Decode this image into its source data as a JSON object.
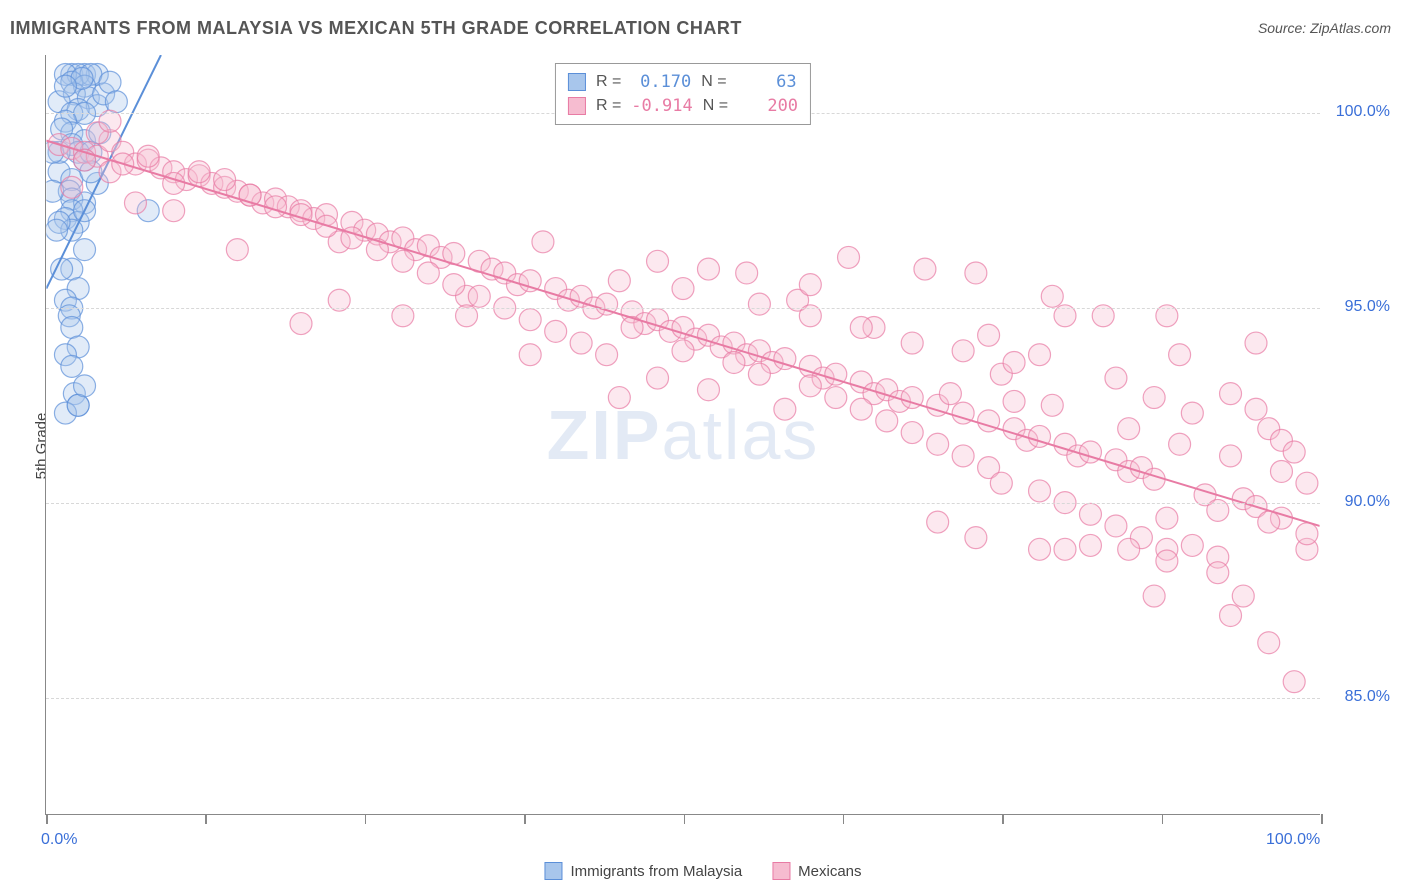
{
  "title": "IMMIGRANTS FROM MALAYSIA VS MEXICAN 5TH GRADE CORRELATION CHART",
  "source": "Source: ZipAtlas.com",
  "watermark_a": "ZIP",
  "watermark_b": "atlas",
  "ylabel": "5th Grade",
  "chart": {
    "type": "scatter",
    "xlim": [
      0,
      100
    ],
    "ylim": [
      82,
      101.5
    ],
    "xtick_positions": [
      0,
      12.5,
      25,
      37.5,
      50,
      62.5,
      75,
      87.5,
      100
    ],
    "xtick_labels": {
      "0": "0.0%",
      "100": "100.0%"
    },
    "ytick_positions": [
      85,
      90,
      95,
      100
    ],
    "ytick_labels": [
      "85.0%",
      "90.0%",
      "95.0%",
      "100.0%"
    ],
    "grid_color": "#d8d8d8",
    "background_color": "#ffffff",
    "marker_radius": 11,
    "marker_fill_opacity": 0.35,
    "marker_stroke_opacity": 0.7,
    "marker_stroke_width": 1.2,
    "line_width": 2,
    "series": [
      {
        "name": "Immigrants from Malaysia",
        "color": "#5b8fd8",
        "fill": "#a8c6ec",
        "R": "0.170",
        "N": "63",
        "trend": {
          "x1": 0,
          "y1": 95.5,
          "x2": 9,
          "y2": 101.5
        },
        "points": [
          [
            2,
            101
          ],
          [
            3,
            101
          ],
          [
            4,
            101
          ],
          [
            2.5,
            101
          ],
          [
            3.5,
            101
          ],
          [
            1.5,
            101
          ],
          [
            2,
            100.8
          ],
          [
            3,
            100.7
          ],
          [
            2.2,
            100.5
          ],
          [
            3.3,
            100.4
          ],
          [
            1,
            100.3
          ],
          [
            4,
            100.2
          ],
          [
            2.5,
            100.1
          ],
          [
            2,
            100
          ],
          [
            3,
            100
          ],
          [
            1.5,
            99.8
          ],
          [
            4.5,
            100.5
          ],
          [
            2,
            99.5
          ],
          [
            3,
            99.3
          ],
          [
            1.2,
            99.6
          ],
          [
            2,
            99.2
          ],
          [
            2.5,
            99
          ],
          [
            3,
            98.8
          ],
          [
            1,
            98.5
          ],
          [
            2,
            98.3
          ],
          [
            3.5,
            99
          ],
          [
            1.8,
            98
          ],
          [
            2,
            97.8
          ],
          [
            3,
            97.7
          ],
          [
            4,
            98.2
          ],
          [
            2,
            97.5
          ],
          [
            1.5,
            97.3
          ],
          [
            2.5,
            97.2
          ],
          [
            3,
            97.5
          ],
          [
            2,
            97
          ],
          [
            1,
            97.2
          ],
          [
            8,
            97.5
          ],
          [
            2,
            96
          ],
          [
            2.5,
            95.5
          ],
          [
            1.5,
            95.2
          ],
          [
            2,
            95
          ],
          [
            3,
            96.5
          ],
          [
            1.8,
            94.8
          ],
          [
            2,
            94.5
          ],
          [
            2.5,
            94
          ],
          [
            1.5,
            93.8
          ],
          [
            2,
            93.5
          ],
          [
            2.2,
            92.8
          ],
          [
            2.5,
            92.5
          ],
          [
            1.5,
            92.3
          ],
          [
            2.5,
            92.5
          ],
          [
            3,
            93
          ],
          [
            1,
            99
          ],
          [
            5,
            100.8
          ],
          [
            3.5,
            98.5
          ],
          [
            0.8,
            97
          ],
          [
            0.5,
            99
          ],
          [
            1.2,
            96
          ],
          [
            4.2,
            99.5
          ],
          [
            0.5,
            98
          ],
          [
            5.5,
            100.3
          ],
          [
            2.8,
            100.9
          ],
          [
            1.5,
            100.7
          ]
        ]
      },
      {
        "name": "Mexicans",
        "color": "#e87ba4",
        "fill": "#f6bcd0",
        "R": "-0.914",
        "N": "200",
        "trend": {
          "x1": 0,
          "y1": 99.3,
          "x2": 100,
          "y2": 89.4
        },
        "points": [
          [
            1,
            99.2
          ],
          [
            2,
            99.1
          ],
          [
            3,
            99
          ],
          [
            4,
            98.9
          ],
          [
            5,
            99.3
          ],
          [
            6,
            99
          ],
          [
            4,
            99.5
          ],
          [
            7,
            98.7
          ],
          [
            5,
            98.5
          ],
          [
            3,
            98.8
          ],
          [
            8,
            98.8
          ],
          [
            9,
            98.6
          ],
          [
            10,
            98.5
          ],
          [
            6,
            98.7
          ],
          [
            11,
            98.3
          ],
          [
            7,
            97.7
          ],
          [
            12,
            98.4
          ],
          [
            13,
            98.2
          ],
          [
            8,
            98.9
          ],
          [
            14,
            98.1
          ],
          [
            15,
            98
          ],
          [
            10,
            98.2
          ],
          [
            16,
            97.9
          ],
          [
            17,
            97.7
          ],
          [
            12,
            98.5
          ],
          [
            18,
            97.8
          ],
          [
            19,
            97.6
          ],
          [
            14,
            98.3
          ],
          [
            20,
            97.5
          ],
          [
            21,
            97.3
          ],
          [
            16,
            97.9
          ],
          [
            22,
            97.4
          ],
          [
            23,
            96.7
          ],
          [
            18,
            97.6
          ],
          [
            24,
            97.2
          ],
          [
            25,
            97
          ],
          [
            20,
            97.4
          ],
          [
            26,
            96.9
          ],
          [
            27,
            96.7
          ],
          [
            22,
            97.1
          ],
          [
            28,
            96.8
          ],
          [
            29,
            96.5
          ],
          [
            24,
            96.8
          ],
          [
            30,
            96.6
          ],
          [
            31,
            96.3
          ],
          [
            26,
            96.5
          ],
          [
            32,
            96.4
          ],
          [
            33,
            95.3
          ],
          [
            28,
            96.2
          ],
          [
            34,
            96.2
          ],
          [
            35,
            96
          ],
          [
            30,
            95.9
          ],
          [
            36,
            95.9
          ],
          [
            37,
            95.6
          ],
          [
            32,
            95.6
          ],
          [
            38,
            95.7
          ],
          [
            39,
            96.7
          ],
          [
            34,
            95.3
          ],
          [
            40,
            95.5
          ],
          [
            41,
            95.2
          ],
          [
            36,
            95
          ],
          [
            42,
            95.3
          ],
          [
            43,
            95
          ],
          [
            38,
            94.7
          ],
          [
            44,
            95.1
          ],
          [
            45,
            95.7
          ],
          [
            40,
            94.4
          ],
          [
            46,
            94.9
          ],
          [
            47,
            94.6
          ],
          [
            42,
            94.1
          ],
          [
            48,
            94.7
          ],
          [
            49,
            94.4
          ],
          [
            44,
            93.8
          ],
          [
            50,
            94.5
          ],
          [
            51,
            94.2
          ],
          [
            46,
            94.5
          ],
          [
            52,
            94.3
          ],
          [
            53,
            94
          ],
          [
            48,
            93.2
          ],
          [
            54,
            94.1
          ],
          [
            55,
            93.8
          ],
          [
            50,
            93.9
          ],
          [
            56,
            93.9
          ],
          [
            57,
            93.6
          ],
          [
            52,
            92.9
          ],
          [
            58,
            93.7
          ],
          [
            59,
            95.2
          ],
          [
            54,
            93.6
          ],
          [
            60,
            93.5
          ],
          [
            61,
            93.2
          ],
          [
            56,
            93.3
          ],
          [
            62,
            93.3
          ],
          [
            63,
            96.3
          ],
          [
            58,
            92.4
          ],
          [
            64,
            93.1
          ],
          [
            65,
            92.8
          ],
          [
            60,
            93
          ],
          [
            66,
            92.9
          ],
          [
            67,
            92.6
          ],
          [
            62,
            92.7
          ],
          [
            68,
            92.7
          ],
          [
            69,
            96
          ],
          [
            64,
            92.4
          ],
          [
            70,
            92.5
          ],
          [
            71,
            92.8
          ],
          [
            66,
            92.1
          ],
          [
            72,
            92.3
          ],
          [
            73,
            95.9
          ],
          [
            68,
            91.8
          ],
          [
            74,
            92.1
          ],
          [
            75,
            93.3
          ],
          [
            70,
            91.5
          ],
          [
            76,
            91.9
          ],
          [
            77,
            91.6
          ],
          [
            72,
            91.2
          ],
          [
            78,
            91.7
          ],
          [
            79,
            95.3
          ],
          [
            74,
            90.9
          ],
          [
            80,
            91.5
          ],
          [
            81,
            91.2
          ],
          [
            76,
            92.6
          ],
          [
            82,
            91.3
          ],
          [
            83,
            94.8
          ],
          [
            78,
            90.3
          ],
          [
            84,
            91.1
          ],
          [
            85,
            90.8
          ],
          [
            80,
            90
          ],
          [
            86,
            90.9
          ],
          [
            87,
            90.6
          ],
          [
            82,
            89.7
          ],
          [
            88,
            88.8
          ],
          [
            89,
            93.8
          ],
          [
            84,
            89.4
          ],
          [
            90,
            88.9
          ],
          [
            91,
            90.2
          ],
          [
            86,
            89.1
          ],
          [
            92,
            88.6
          ],
          [
            93,
            92.8
          ],
          [
            88,
            89.6
          ],
          [
            94,
            90.1
          ],
          [
            95,
            92.4
          ],
          [
            90,
            92.3
          ],
          [
            96,
            86.4
          ],
          [
            97,
            89.6
          ],
          [
            92,
            88.2
          ],
          [
            98,
            85.4
          ],
          [
            99,
            88.8
          ],
          [
            94,
            87.6
          ],
          [
            95,
            89.9
          ],
          [
            96,
            91.9
          ],
          [
            93,
            87.1
          ],
          [
            97,
            91.6
          ],
          [
            98,
            91.3
          ],
          [
            80,
            88.8
          ],
          [
            85,
            88.8
          ],
          [
            82,
            88.9
          ],
          [
            87,
            87.6
          ],
          [
            78,
            88.8
          ],
          [
            73,
            89.1
          ],
          [
            65,
            94.5
          ],
          [
            60,
            95.6
          ],
          [
            55,
            95.9
          ],
          [
            50,
            95.5
          ],
          [
            70,
            89.5
          ],
          [
            28,
            94.8
          ],
          [
            23,
            95.2
          ],
          [
            33,
            94.8
          ],
          [
            38,
            93.8
          ],
          [
            10,
            97.5
          ],
          [
            5,
            99.8
          ],
          [
            2,
            98.1
          ],
          [
            15,
            96.5
          ],
          [
            20,
            94.6
          ],
          [
            45,
            92.7
          ],
          [
            48,
            96.2
          ],
          [
            52,
            96
          ],
          [
            80,
            94.8
          ],
          [
            88,
            94.8
          ],
          [
            95,
            94.1
          ],
          [
            99,
            90.5
          ],
          [
            75,
            90.5
          ],
          [
            85,
            91.9
          ],
          [
            89,
            91.5
          ],
          [
            93,
            91.2
          ],
          [
            97,
            90.8
          ],
          [
            76,
            93.6
          ],
          [
            79,
            92.5
          ],
          [
            84,
            93.2
          ],
          [
            87,
            92.7
          ],
          [
            74,
            94.3
          ],
          [
            78,
            93.8
          ],
          [
            72,
            93.9
          ],
          [
            68,
            94.1
          ],
          [
            64,
            94.5
          ],
          [
            60,
            94.8
          ],
          [
            56,
            95.1
          ],
          [
            99,
            89.2
          ],
          [
            96,
            89.5
          ],
          [
            92,
            89.8
          ],
          [
            88,
            88.5
          ]
        ]
      }
    ]
  },
  "legend_bottom": [
    {
      "label": "Immigrants from Malaysia",
      "fill": "#a8c6ec",
      "stroke": "#5b8fd8"
    },
    {
      "label": "Mexicans",
      "fill": "#f6bcd0",
      "stroke": "#e87ba4"
    }
  ]
}
